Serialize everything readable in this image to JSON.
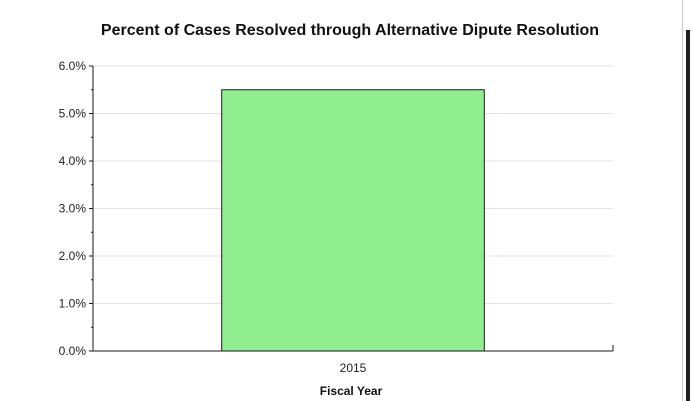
{
  "chart_data": {
    "type": "bar",
    "title": "Percent of Cases Resolved through Alternative Dipute Resolution",
    "xlabel": "Fiscal Year",
    "ylabel": "",
    "categories": [
      "2015"
    ],
    "values": [
      5.5
    ],
    "ylim": [
      0,
      6
    ],
    "yticks": [
      0,
      1,
      2,
      3,
      4,
      5,
      6
    ],
    "ytick_labels": [
      "0.0%",
      "1.0%",
      "2.0%",
      "3.0%",
      "4.0%",
      "5.0%",
      "6.0%"
    ],
    "grid": true,
    "legend": "none",
    "colors": {
      "bar_fill": "#90ee90",
      "bar_stroke": "#1a1a1a",
      "grid": "#e3e3e3",
      "axis": "#1a1a1a"
    }
  }
}
